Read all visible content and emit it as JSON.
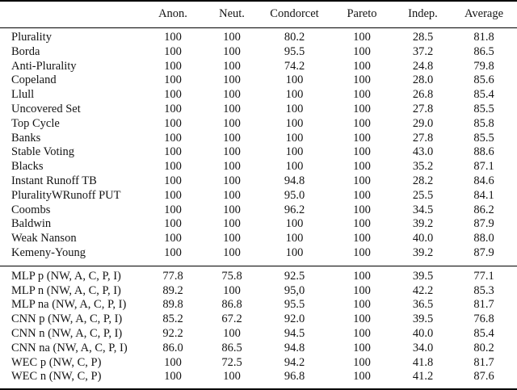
{
  "page": {
    "background": "#ffffff",
    "text_color": "#141414",
    "rule_color": "#000000"
  },
  "chart_data": {
    "type": "table",
    "columns": [
      "",
      "Anon.",
      "Neut.",
      "Condorcet",
      "Pareto",
      "Indep.",
      "Average"
    ],
    "sections": [
      {
        "rows": [
          {
            "label": "Plurality",
            "values": [
              "100",
              "100",
              "80.2",
              "100",
              "28.5",
              "81.8"
            ]
          },
          {
            "label": "Borda",
            "values": [
              "100",
              "100",
              "95.5",
              "100",
              "37.2",
              "86.5"
            ]
          },
          {
            "label": "Anti-Plurality",
            "values": [
              "100",
              "100",
              "74.2",
              "100",
              "24.8",
              "79.8"
            ]
          },
          {
            "label": "Copeland",
            "values": [
              "100",
              "100",
              "100",
              "100",
              "28.0",
              "85.6"
            ]
          },
          {
            "label": "Llull",
            "values": [
              "100",
              "100",
              "100",
              "100",
              "26.8",
              "85.4"
            ]
          },
          {
            "label": "Uncovered Set",
            "values": [
              "100",
              "100",
              "100",
              "100",
              "27.8",
              "85.5"
            ]
          },
          {
            "label": "Top Cycle",
            "values": [
              "100",
              "100",
              "100",
              "100",
              "29.0",
              "85.8"
            ]
          },
          {
            "label": "Banks",
            "values": [
              "100",
              "100",
              "100",
              "100",
              "27.8",
              "85.5"
            ]
          },
          {
            "label": "Stable Voting",
            "values": [
              "100",
              "100",
              "100",
              "100",
              "43.0",
              "88.6"
            ]
          },
          {
            "label": "Blacks",
            "values": [
              "100",
              "100",
              "100",
              "100",
              "35.2",
              "87.1"
            ]
          },
          {
            "label": "Instant Runoff TB",
            "values": [
              "100",
              "100",
              "94.8",
              "100",
              "28.2",
              "84.6"
            ]
          },
          {
            "label": "PluralityWRunoff PUT",
            "values": [
              "100",
              "100",
              "95.0",
              "100",
              "25.5",
              "84.1"
            ]
          },
          {
            "label": "Coombs",
            "values": [
              "100",
              "100",
              "96.2",
              "100",
              "34.5",
              "86.2"
            ]
          },
          {
            "label": "Baldwin",
            "values": [
              "100",
              "100",
              "100",
              "100",
              "39.2",
              "87.9"
            ]
          },
          {
            "label": "Weak Nanson",
            "values": [
              "100",
              "100",
              "100",
              "100",
              "40.0",
              "88.0"
            ]
          },
          {
            "label": "Kemeny-Young",
            "values": [
              "100",
              "100",
              "100",
              "100",
              "39.2",
              "87.9"
            ]
          }
        ]
      },
      {
        "rows": [
          {
            "label": "MLP p (NW, A, C, P, I)",
            "values": [
              "77.8",
              "75.8",
              "92.5",
              "100",
              "39.5",
              "77.1"
            ]
          },
          {
            "label": "MLP n (NW, A, C, P, I)",
            "values": [
              "89.2",
              "100",
              "95,0",
              "100",
              "42.2",
              "85.3"
            ]
          },
          {
            "label": "MLP na (NW, A, C, P, I)",
            "values": [
              "89.8",
              "86.8",
              "95.5",
              "100",
              "36.5",
              "81.7"
            ]
          },
          {
            "label": "CNN p (NW, A, C, P, I)",
            "values": [
              "85.2",
              "67.2",
              "92.0",
              "100",
              "39.5",
              "76.8"
            ]
          },
          {
            "label": "CNN n (NW, A, C, P, I)",
            "values": [
              "92.2",
              "100",
              "94.5",
              "100",
              "40.0",
              "85.4"
            ]
          },
          {
            "label": "CNN na (NW, A, C, P, I)",
            "values": [
              "86.0",
              "86.5",
              "94.8",
              "100",
              "34.0",
              "80.2"
            ]
          },
          {
            "label": "WEC p (NW, C, P)",
            "values": [
              "100",
              "72.5",
              "94.2",
              "100",
              "41.8",
              "81.7"
            ]
          },
          {
            "label": "WEC n (NW, C, P)",
            "values": [
              "100",
              "100",
              "96.8",
              "100",
              "41.2",
              "87.6"
            ]
          }
        ]
      }
    ]
  }
}
